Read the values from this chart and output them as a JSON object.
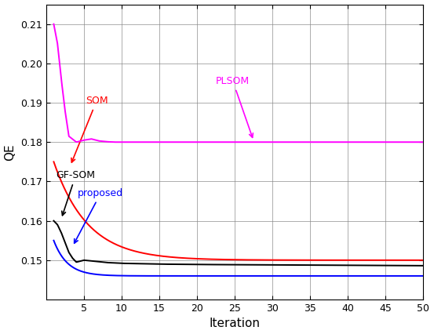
{
  "title": "",
  "xlabel": "Iteration",
  "ylabel": "QE",
  "xlim": [
    0,
    50
  ],
  "ylim": [
    0.14,
    0.215
  ],
  "yticks": [
    0.15,
    0.16,
    0.17,
    0.18,
    0.19,
    0.2,
    0.21
  ],
  "xticks": [
    5,
    10,
    15,
    20,
    25,
    30,
    35,
    40,
    45,
    50
  ],
  "figsize": [
    5.53,
    4.26
  ],
  "dpi": 100,
  "colors": {
    "PLSOM": "#FF00FF",
    "SOM": "#FF0000",
    "GF-SOM": "#000000",
    "proposed": "#0000FF"
  }
}
